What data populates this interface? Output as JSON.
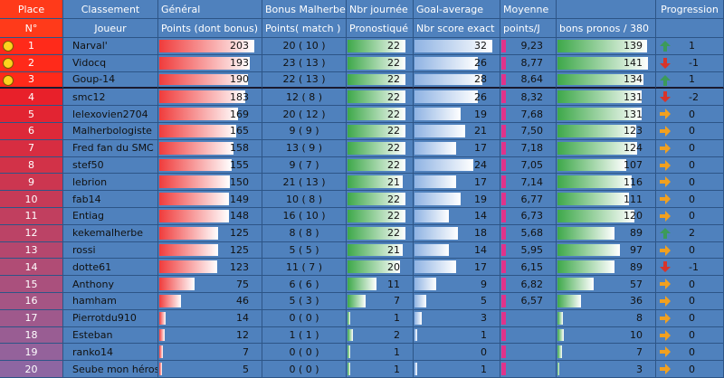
{
  "header": {
    "columns": [
      {
        "top": "Place",
        "bottom": "N°"
      },
      {
        "top": "Classement",
        "bottom": "Joueur"
      },
      {
        "top": "Général",
        "bottom": "Points (dont bonus)"
      },
      {
        "top": "Bonus Malherbe",
        "bottom": "Points( match )"
      },
      {
        "top": "Nbr journée",
        "bottom": "Pronostiqué"
      },
      {
        "top": "Goal-average",
        "bottom": "Nbr score exact"
      },
      {
        "top": "Moyenne",
        "bottom": "points/J"
      },
      {
        "bottom": "bons pronos / 380"
      },
      {
        "top": "Progression"
      }
    ]
  },
  "rows": [
    {
      "place": 1,
      "player": "Narval'",
      "points": 203,
      "bonus": "20 ( 10 )",
      "played": 22,
      "exact": 32,
      "average": "9,23",
      "good": 139,
      "progression": 1
    },
    {
      "place": 2,
      "player": "Vidocq",
      "points": 193,
      "bonus": "23 ( 13 )",
      "played": 22,
      "exact": 26,
      "average": "8,77",
      "good": 141,
      "progression": -1
    },
    {
      "place": 3,
      "player": "Goup-14",
      "points": 190,
      "bonus": "22 ( 13 )",
      "played": 22,
      "exact": 28,
      "average": "8,64",
      "good": 134,
      "progression": 1
    },
    {
      "place": 4,
      "player": "smc12",
      "points": 183,
      "bonus": "12 ( 8 )",
      "played": 22,
      "exact": 26,
      "average": "8,32",
      "good": 131,
      "progression": -2
    },
    {
      "place": 5,
      "player": "lelexovien2704",
      "points": 169,
      "bonus": "20 ( 12 )",
      "played": 22,
      "exact": 19,
      "average": "7,68",
      "good": 131,
      "progression": 0
    },
    {
      "place": 6,
      "player": "Malherbologiste",
      "points": 165,
      "bonus": "9 ( 9 )",
      "played": 22,
      "exact": 21,
      "average": "7,50",
      "good": 123,
      "progression": 0
    },
    {
      "place": 7,
      "player": "Fred fan du SMC",
      "points": 158,
      "bonus": "13 ( 9 )",
      "played": 22,
      "exact": 17,
      "average": "7,18",
      "good": 124,
      "progression": 0
    },
    {
      "place": 8,
      "player": "stef50",
      "points": 155,
      "bonus": "9 ( 7 )",
      "played": 22,
      "exact": 24,
      "average": "7,05",
      "good": 107,
      "progression": 0
    },
    {
      "place": 9,
      "player": "lebrion",
      "points": 150,
      "bonus": "21 ( 13 )",
      "played": 21,
      "exact": 17,
      "average": "7,14",
      "good": 116,
      "progression": 0
    },
    {
      "place": 10,
      "player": "fab14",
      "points": 149,
      "bonus": "10 ( 8 )",
      "played": 22,
      "exact": 19,
      "average": "6,77",
      "good": 111,
      "progression": 0
    },
    {
      "place": 11,
      "player": "Entiag",
      "points": 148,
      "bonus": "16 ( 10 )",
      "played": 22,
      "exact": 14,
      "average": "6,73",
      "good": 120,
      "progression": 0
    },
    {
      "place": 12,
      "player": "kekemalherbe",
      "points": 125,
      "bonus": "8 ( 8 )",
      "played": 22,
      "exact": 18,
      "average": "5,68",
      "good": 89,
      "progression": 2
    },
    {
      "place": 13,
      "player": "rossi",
      "points": 125,
      "bonus": "5 ( 5 )",
      "played": 21,
      "exact": 14,
      "average": "5,95",
      "good": 97,
      "progression": 0
    },
    {
      "place": 14,
      "player": "dotte61",
      "points": 123,
      "bonus": "11 ( 7 )",
      "played": 20,
      "exact": 17,
      "average": "6,15",
      "good": 89,
      "progression": -1
    },
    {
      "place": 15,
      "player": "Anthony",
      "points": 75,
      "bonus": "6 ( 6 )",
      "played": 11,
      "exact": 9,
      "average": "6,82",
      "good": 57,
      "progression": 0
    },
    {
      "place": 16,
      "player": "hamham",
      "points": 46,
      "bonus": "5 ( 3 )",
      "played": 7,
      "exact": 5,
      "average": "6,57",
      "good": 36,
      "progression": 0
    },
    {
      "place": 17,
      "player": "Pierrotdu910",
      "points": 14,
      "bonus": "0 ( 0 )",
      "played": 1,
      "exact": 3,
      "average": null,
      "good": 8,
      "progression": 0
    },
    {
      "place": 18,
      "player": "Esteban",
      "points": 12,
      "bonus": "1 ( 1 )",
      "played": 2,
      "exact": 1,
      "average": null,
      "good": 10,
      "progression": 0
    },
    {
      "place": 19,
      "player": "ranko14",
      "points": 7,
      "bonus": "0 ( 0 )",
      "played": 1,
      "exact": 0,
      "average": null,
      "good": 7,
      "progression": 0
    },
    {
      "place": 20,
      "player": "Seube mon héros",
      "points": 5,
      "bonus": "0 ( 0 )",
      "played": 1,
      "exact": 1,
      "average": null,
      "good": 3,
      "progression": 0
    }
  ]
}
